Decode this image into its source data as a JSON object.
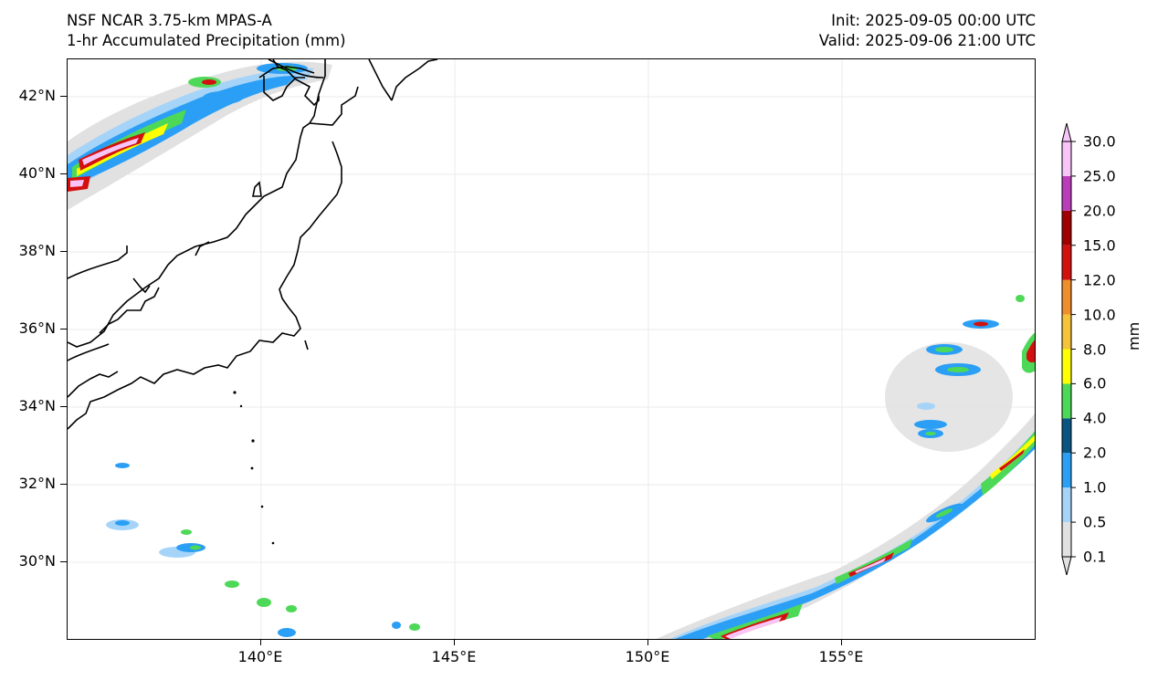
{
  "title": {
    "model": "NSF NCAR 3.75-km MPAS-A",
    "field": "1-hr Accumulated Precipitation (mm)",
    "init": "Init: 2025-09-05 00:00 UTC",
    "valid": "Valid: 2025-09-06 21:00 UTC"
  },
  "axes": {
    "lat_labels": [
      "42°N",
      "40°N",
      "38°N",
      "36°N",
      "34°N",
      "32°N",
      "30°N"
    ],
    "lon_labels": [
      "140°E",
      "145°E",
      "150°E",
      "155°E"
    ]
  },
  "colorbar": {
    "units": "mm",
    "levels": [
      "0.1",
      "0.5",
      "1.0",
      "2.0",
      "4.0",
      "6.0",
      "8.0",
      "10.0",
      "12.0",
      "15.0",
      "20.0",
      "25.0",
      "30.0"
    ],
    "colors": [
      "#e1e1e1",
      "#a6d4f8",
      "#2b9ff5",
      "#0a5482",
      "#4dd957",
      "#ffff00",
      "#f6c23a",
      "#f08e2c",
      "#d31010",
      "#a10000",
      "#bb3cbb",
      "#f7c5f7"
    ]
  },
  "chart_data": {
    "type": "map",
    "title": "1-hr Accumulated Precipitation (mm)",
    "lon_range": [
      135.0,
      160.0
    ],
    "lat_range": [
      28.0,
      43.0
    ],
    "gridlines": true,
    "legend": "right colorbar"
  }
}
